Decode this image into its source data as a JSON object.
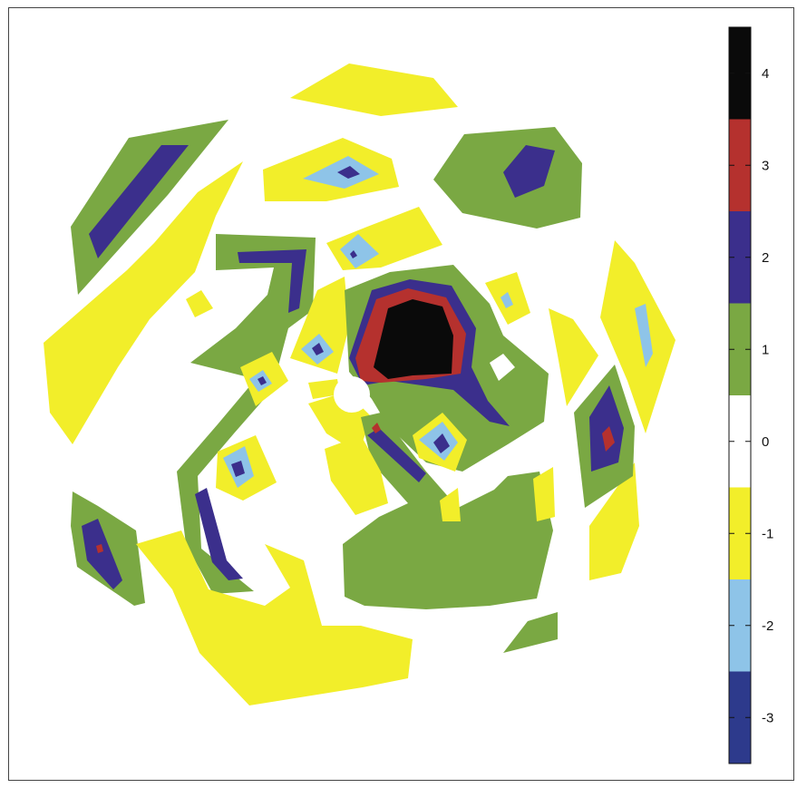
{
  "chart_data": {
    "type": "heatmap",
    "title": "",
    "xlabel": "",
    "ylabel": "",
    "colorbar": {
      "ticks": [
        "4",
        "3",
        "2",
        "1",
        "0",
        "-1",
        "-2",
        "-3"
      ],
      "range": [
        -3.5,
        4.5
      ],
      "bands": [
        {
          "from": 3.5,
          "to": 4.5,
          "color": "#0a0a0a"
        },
        {
          "from": 2.5,
          "to": 3.5,
          "color": "#b5312e"
        },
        {
          "from": 1.5,
          "to": 2.5,
          "color": "#3b2f8c"
        },
        {
          "from": 0.5,
          "to": 1.5,
          "color": "#7aa843"
        },
        {
          "from": -0.5,
          "to": 0.5,
          "color": "#ffffff"
        },
        {
          "from": -1.5,
          "to": -0.5,
          "color": "#f2ee2a"
        },
        {
          "from": -2.5,
          "to": -1.5,
          "color": "#8ec4e8"
        },
        {
          "from": -3.5,
          "to": -2.5,
          "color": "#2d3a8c"
        }
      ]
    }
  }
}
